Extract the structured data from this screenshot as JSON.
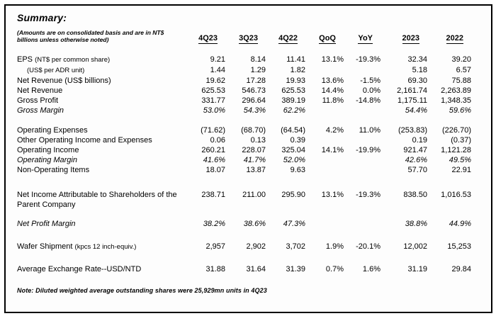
{
  "title": "Summary:",
  "subtitle": "(Amounts are on consolidated basis and are in NT$ billions unless otherwise noted)",
  "footnote": "Note: Diluted weighted average outstanding shares were 25,929mn units in 4Q23",
  "table": {
    "columns": [
      "4Q23",
      "3Q23",
      "4Q22",
      "QoQ",
      "YoY",
      "2023",
      "2022"
    ],
    "sections": [
      {
        "rows": [
          {
            "label": "EPS",
            "note": "(NT$ per common share)",
            "values": [
              "9.21",
              "8.14",
              "11.41",
              "13.1%",
              "-19.3%",
              "32.34",
              "39.20"
            ]
          },
          {
            "label": "",
            "note": "(US$ per ADR unit)",
            "indent": true,
            "values": [
              "1.44",
              "1.29",
              "1.82",
              "",
              "",
              "5.18",
              "6.57"
            ]
          },
          {
            "label": "Net Revenue (US$ billions)",
            "values": [
              "19.62",
              "17.28",
              "19.93",
              "13.6%",
              "-1.5%",
              "69.30",
              "75.88"
            ]
          },
          {
            "label": "Net Revenue",
            "values": [
              "625.53",
              "546.73",
              "625.53",
              "14.4%",
              "0.0%",
              "2,161.74",
              "2,263.89"
            ]
          },
          {
            "label": "Gross Profit",
            "values": [
              "331.77",
              "296.64",
              "389.19",
              "11.8%",
              "-14.8%",
              "1,175.11",
              "1,348.35"
            ]
          },
          {
            "label": "Gross Margin",
            "italic": true,
            "values": [
              "53.0%",
              "54.3%",
              "62.2%",
              "",
              "",
              "54.4%",
              "59.6%"
            ]
          }
        ]
      },
      {
        "rows": [
          {
            "label": "Operating Expenses",
            "values": [
              "(71.62)",
              "(68.70)",
              "(64.54)",
              "4.2%",
              "11.0%",
              "(253.83)",
              "(226.70)"
            ]
          },
          {
            "label": "Other Operating Income and Expenses",
            "values": [
              "0.06",
              "0.13",
              "0.39",
              "",
              "",
              "0.19",
              "(0.37)"
            ]
          },
          {
            "label": "Operating Income",
            "values": [
              "260.21",
              "228.07",
              "325.04",
              "14.1%",
              "-19.9%",
              "921.47",
              "1,121.28"
            ]
          },
          {
            "label": "Operating Margin",
            "italic": true,
            "values": [
              "41.6%",
              "41.7%",
              "52.0%",
              "",
              "",
              "42.6%",
              "49.5%"
            ]
          },
          {
            "label": "Non-Operating Items",
            "values": [
              "18.07",
              "13.87",
              "9.63",
              "",
              "",
              "57.70",
              "22.91"
            ]
          }
        ]
      },
      {
        "rows": [
          {
            "label": "Net Income Attributable to Shareholders of the Parent Company",
            "values": [
              "238.71",
              "211.00",
              "295.90",
              "13.1%",
              "-19.3%",
              "838.50",
              "1,016.53"
            ]
          }
        ]
      },
      {
        "rows": [
          {
            "label": "Net Profit Margin",
            "italic": true,
            "values": [
              "38.2%",
              "38.6%",
              "47.3%",
              "",
              "",
              "38.8%",
              "44.9%"
            ]
          }
        ]
      },
      {
        "rows": [
          {
            "label": "Wafer Shipment",
            "note": "(kpcs 12 inch-equiv.)",
            "values": [
              "2,957",
              "2,902",
              "3,702",
              "1.9%",
              "-20.1%",
              "12,002",
              "15,253"
            ]
          }
        ]
      },
      {
        "rows": [
          {
            "label": "Average Exchange Rate--USD/NTD",
            "values": [
              "31.88",
              "31.64",
              "31.39",
              "0.7%",
              "1.6%",
              "31.19",
              "29.84"
            ]
          }
        ]
      }
    ]
  }
}
